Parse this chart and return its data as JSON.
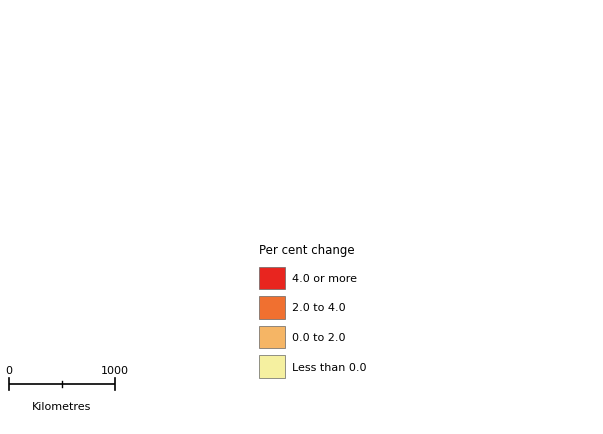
{
  "legend_title": "Per cent change",
  "legend_items": [
    {
      "label": "4.0 or more",
      "color": "#e8251f"
    },
    {
      "label": "2.0 to 4.0",
      "color": "#f07030"
    },
    {
      "label": "0.0 to 2.0",
      "color": "#f5b565"
    },
    {
      "label": "Less than 0.0",
      "color": "#f5f0a0"
    }
  ],
  "scalebar_label": "Kilometres",
  "background_color": "#ffffff",
  "map_edge_color": "#3a2a00",
  "map_edge_width": 0.3,
  "fig_width": 6.03,
  "fig_height": 4.35,
  "dpi": 100,
  "map_xlim": [
    112.9,
    154.5
  ],
  "map_ylim": [
    -44.5,
    -9.0
  ]
}
